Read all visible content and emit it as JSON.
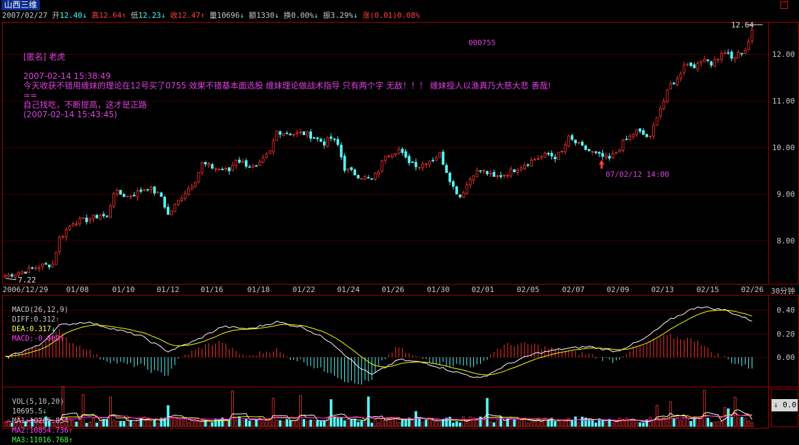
{
  "title": "山西三维",
  "quote_bar": {
    "date": "2007/02/27",
    "open_label": "开",
    "open": "12.40",
    "open_arrow": "↓",
    "high_label": "高",
    "high": "12.64",
    "high_arrow": "↑",
    "low_label": "低",
    "low": "12.23",
    "low_arrow": "↓",
    "close_label": "收",
    "close": "12.47",
    "close_arrow": "↑",
    "vol_label": "量",
    "vol": "10696",
    "vol_arrow": "↓",
    "amt_label": "额",
    "amt": "1330",
    "amt_arrow": "↓",
    "turn_label": "换",
    "turn": "0.00%",
    "turn_arrow": "↓",
    "amp_label": "振",
    "amp": "3.29%",
    "amp_arrow": "↓",
    "chg_label": "涨",
    "chg": "(0.01)",
    "chg_pct": "0.08%"
  },
  "stock_code": "000755",
  "comment": {
    "author": "[匿名] 老虎",
    "time1": "2007-02-14 15:38:49",
    "text1": "今天收获不错用缠妹的理论在12号买了0755 效果不错基本面选股 缠妹理论做战术指导 只有两个字 无敌！！！ 缠妹授人以渔真乃大慈大悲 善哉!",
    "sep": "==",
    "text2": "自己找吃，不断提高，这才是正路",
    "time2": "(2007-02-14 15:43:45)"
  },
  "annotation": {
    "text": "07/02/12 14:00"
  },
  "price_labels": {
    "high": "12.64",
    "low": "7.22"
  },
  "period_label": "30分钟",
  "macd_legend": {
    "params": "MACD(26,12,9)",
    "diff_label": "DIFF:",
    "diff": "0.312",
    "diff_arrow": "↑",
    "dea_label": "DEA:",
    "dea": "0.317",
    "dea_arrow": "↓",
    "macd_label": "MACD:",
    "macd": "-0.009",
    "macd_arrow": "↑"
  },
  "vol_legend": {
    "params": "VOL(5,10,20)",
    "vol": "10695.5",
    "vol_arrow": "↓",
    "ma1_label": "MA1:",
    "ma1": "10265.854",
    "ma1_arrow": "↑",
    "ma2_label": "MA2:",
    "ma2": "10854.736",
    "ma2_arrow": "↑",
    "ma3_label": "MA3:",
    "ma3": "11016.768",
    "ma3_arrow": "↑"
  },
  "vol_box": {
    "arrow": "↓",
    "value": "0.0"
  },
  "colors": {
    "up": "#ff3232",
    "down": "#54fcfc",
    "diff": "#ffffff",
    "dea": "#ffff00",
    "ma1": "#ffffff",
    "ma2": "#ffff00",
    "ma3": "#ff00ff",
    "grid": "#7a0000"
  },
  "chart_data": {
    "type": "candlestick",
    "x_ticks": [
      "2006/12/29",
      "01/08",
      "01/10",
      "01/12",
      "01/16",
      "01/18",
      "01/22",
      "01/24",
      "01/26",
      "01/30",
      "02/01",
      "02/05",
      "02/07",
      "02/09",
      "02/13",
      "02/15",
      "02/26"
    ],
    "y_ticks": [
      "8.00",
      "9.00",
      "10.00",
      "11.00",
      "12.00"
    ],
    "ylim": [
      7.0,
      12.7
    ],
    "close_path": [
      [
        0,
        7.25
      ],
      [
        6,
        7.35
      ],
      [
        10,
        7.45
      ],
      [
        14,
        7.5
      ],
      [
        16,
        8.05
      ],
      [
        20,
        8.4
      ],
      [
        24,
        8.45
      ],
      [
        28,
        8.55
      ],
      [
        30,
        8.5
      ],
      [
        32,
        9.05
      ],
      [
        36,
        8.95
      ],
      [
        38,
        9.0
      ],
      [
        42,
        9.15
      ],
      [
        46,
        8.95
      ],
      [
        48,
        8.55
      ],
      [
        52,
        8.95
      ],
      [
        56,
        9.3
      ],
      [
        58,
        9.65
      ],
      [
        62,
        9.55
      ],
      [
        66,
        9.5
      ],
      [
        68,
        9.75
      ],
      [
        72,
        9.6
      ],
      [
        74,
        9.55
      ],
      [
        78,
        9.9
      ],
      [
        80,
        10.35
      ],
      [
        84,
        10.3
      ],
      [
        88,
        10.3
      ],
      [
        90,
        10.25
      ],
      [
        94,
        10.1
      ],
      [
        96,
        10.2
      ],
      [
        98,
        10.05
      ],
      [
        100,
        9.55
      ],
      [
        104,
        9.4
      ],
      [
        108,
        9.3
      ],
      [
        110,
        9.5
      ],
      [
        112,
        9.85
      ],
      [
        116,
        9.95
      ],
      [
        118,
        9.75
      ],
      [
        122,
        9.6
      ],
      [
        124,
        9.7
      ],
      [
        126,
        9.75
      ],
      [
        128,
        9.85
      ],
      [
        130,
        9.5
      ],
      [
        132,
        9.15
      ],
      [
        134,
        8.95
      ],
      [
        136,
        9.2
      ],
      [
        138,
        9.45
      ],
      [
        140,
        9.5
      ],
      [
        142,
        9.45
      ],
      [
        144,
        9.35
      ],
      [
        148,
        9.45
      ],
      [
        152,
        9.6
      ],
      [
        156,
        9.75
      ],
      [
        160,
        9.85
      ],
      [
        162,
        9.8
      ],
      [
        164,
        9.9
      ],
      [
        166,
        10.2
      ],
      [
        170,
        10.0
      ],
      [
        174,
        9.85
      ],
      [
        178,
        9.75
      ],
      [
        180,
        9.9
      ],
      [
        182,
        10.1
      ],
      [
        186,
        10.35
      ],
      [
        190,
        10.2
      ],
      [
        192,
        10.7
      ],
      [
        194,
        11.0
      ],
      [
        196,
        11.35
      ],
      [
        198,
        11.45
      ],
      [
        200,
        11.8
      ],
      [
        204,
        11.75
      ],
      [
        206,
        11.95
      ],
      [
        208,
        11.8
      ],
      [
        212,
        12.05
      ],
      [
        214,
        11.9
      ],
      [
        218,
        12.1
      ],
      [
        220,
        12.47
      ]
    ],
    "macd_path": [
      [
        0,
        0.0
      ],
      [
        10,
        0.1
      ],
      [
        16,
        0.27
      ],
      [
        24,
        0.3
      ],
      [
        32,
        0.24
      ],
      [
        40,
        0.18
      ],
      [
        48,
        0.05
      ],
      [
        56,
        0.14
      ],
      [
        64,
        0.26
      ],
      [
        72,
        0.24
      ],
      [
        80,
        0.3
      ],
      [
        88,
        0.25
      ],
      [
        96,
        0.13
      ],
      [
        104,
        -0.08
      ],
      [
        108,
        -0.15
      ],
      [
        116,
        -0.02
      ],
      [
        124,
        -0.05
      ],
      [
        132,
        -0.12
      ],
      [
        140,
        -0.18
      ],
      [
        148,
        -0.06
      ],
      [
        156,
        0.03
      ],
      [
        164,
        0.07
      ],
      [
        172,
        0.09
      ],
      [
        180,
        0.05
      ],
      [
        188,
        0.15
      ],
      [
        196,
        0.32
      ],
      [
        204,
        0.43
      ],
      [
        212,
        0.4
      ],
      [
        220,
        0.31
      ]
    ],
    "macd_yticks": [
      "0.40",
      "0.20",
      "0.00"
    ],
    "volume_ylim": [
      0,
      3.5
    ]
  }
}
